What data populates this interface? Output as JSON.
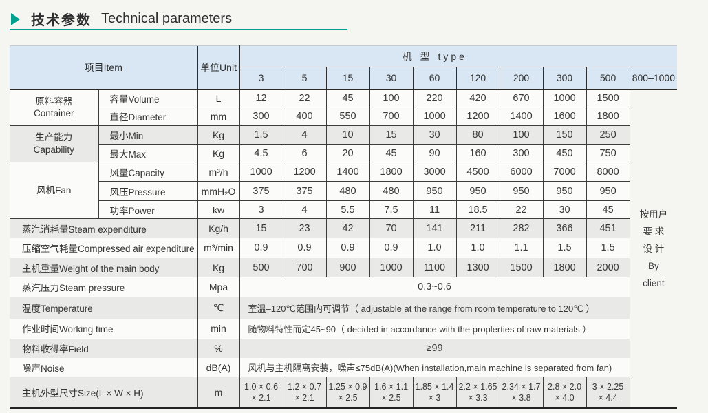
{
  "title": {
    "zh": "技术参数",
    "en": "Technical parameters",
    "accent_color": "#00a28f"
  },
  "header": {
    "item": "项目Item",
    "unit": "单位Unit",
    "type_label": "机 型 type",
    "types": [
      "3",
      "5",
      "15",
      "30",
      "60",
      "120",
      "200",
      "300",
      "500"
    ],
    "custom_col": "800–1000",
    "header_bg": "#d8e7f3"
  },
  "by_client": {
    "lines": [
      "按用户",
      "要 求",
      "设 计",
      "By",
      "client"
    ]
  },
  "groups": [
    {
      "name_zh": "原料容器",
      "name_en": "Container",
      "rows": [
        {
          "label": "容量Volume",
          "unit": "L",
          "values": [
            "12",
            "22",
            "45",
            "100",
            "220",
            "420",
            "670",
            "1000",
            "1500"
          ]
        },
        {
          "label": "直径Diameter",
          "unit": "mm",
          "values": [
            "300",
            "400",
            "550",
            "700",
            "1000",
            "1200",
            "1400",
            "1600",
            "1800"
          ]
        }
      ]
    },
    {
      "name_zh": "生产能力",
      "name_en": "Capability",
      "rows": [
        {
          "label": "最小Min",
          "unit": "Kg",
          "values": [
            "1.5",
            "4",
            "10",
            "15",
            "30",
            "80",
            "100",
            "150",
            "250"
          ]
        },
        {
          "label": "最大Max",
          "unit": "Kg",
          "values": [
            "4.5",
            "6",
            "20",
            "45",
            "90",
            "160",
            "300",
            "450",
            "750"
          ]
        }
      ]
    },
    {
      "name_zh": "风机Fan",
      "name_en": "",
      "rows": [
        {
          "label": "风量Capacity",
          "unit": "m³/h",
          "values": [
            "1000",
            "1200",
            "1400",
            "1800",
            "3000",
            "4500",
            "6000",
            "7000",
            "8000"
          ]
        },
        {
          "label": "风压Pressure",
          "unit": "mmH₂O",
          "values": [
            "375",
            "375",
            "480",
            "480",
            "950",
            "950",
            "950",
            "950",
            "950"
          ]
        },
        {
          "label": "功率Power",
          "unit": "kw",
          "values": [
            "3",
            "4",
            "5.5",
            "7.5",
            "11",
            "18.5",
            "22",
            "30",
            "45"
          ]
        }
      ]
    }
  ],
  "rows": [
    {
      "label": "蒸汽消耗量Steam expenditure",
      "unit": "Kg/h",
      "values": [
        "15",
        "23",
        "42",
        "70",
        "141",
        "211",
        "282",
        "366",
        "451"
      ]
    },
    {
      "label": "压缩空气耗量Compressed air expenditure",
      "unit": "m³/min",
      "values": [
        "0.9",
        "0.9",
        "0.9",
        "0.9",
        "1.0",
        "1.0",
        "1.1",
        "1.5",
        "1.5"
      ]
    },
    {
      "label": "主机重量Weight of the main body",
      "unit": "Kg",
      "values": [
        "500",
        "700",
        "900",
        "1000",
        "1100",
        "1300",
        "1500",
        "1800",
        "2000"
      ]
    },
    {
      "label": "蒸汽压力Steam pressure",
      "unit": "Mpa",
      "merged": "0.3~0.6"
    },
    {
      "label": "温度Temperature",
      "unit": "℃",
      "merged": "室温–120℃范围内可调节（ adjustable at the range from room temperature to 120℃ ）"
    },
    {
      "label": "作业时间Working time",
      "unit": "min",
      "merged": "随物料特性而定45~90（ decided in accordance with the proplerties of raw materials ）"
    },
    {
      "label": "物料收得率Field",
      "unit": "%",
      "merged": "≥99"
    },
    {
      "label": "噪声Noise",
      "unit": "dB(A)",
      "merged": "风机与主机隔离安装，噪声≤75dB(A)(When installation,main machine is separated from fan)"
    },
    {
      "label": "主机外型尺寸Size(L × W × H)",
      "unit": "m",
      "sizes": [
        [
          "1.0 × 0.6",
          "× 2.1"
        ],
        [
          "1.2 × 0.7",
          "× 2.1"
        ],
        [
          "1.25 × 0.9",
          "× 2.5"
        ],
        [
          "1.6 × 1.1",
          "× 2.5"
        ],
        [
          "1.85 × 1.4",
          "× 3"
        ],
        [
          "2.2 × 1.65",
          "× 3.3"
        ],
        [
          "2.34 × 1.7",
          "× 3.8"
        ],
        [
          "2.8 × 2.0",
          "× 4.0"
        ],
        [
          "3 × 2.25",
          "× 4.4"
        ]
      ]
    }
  ]
}
